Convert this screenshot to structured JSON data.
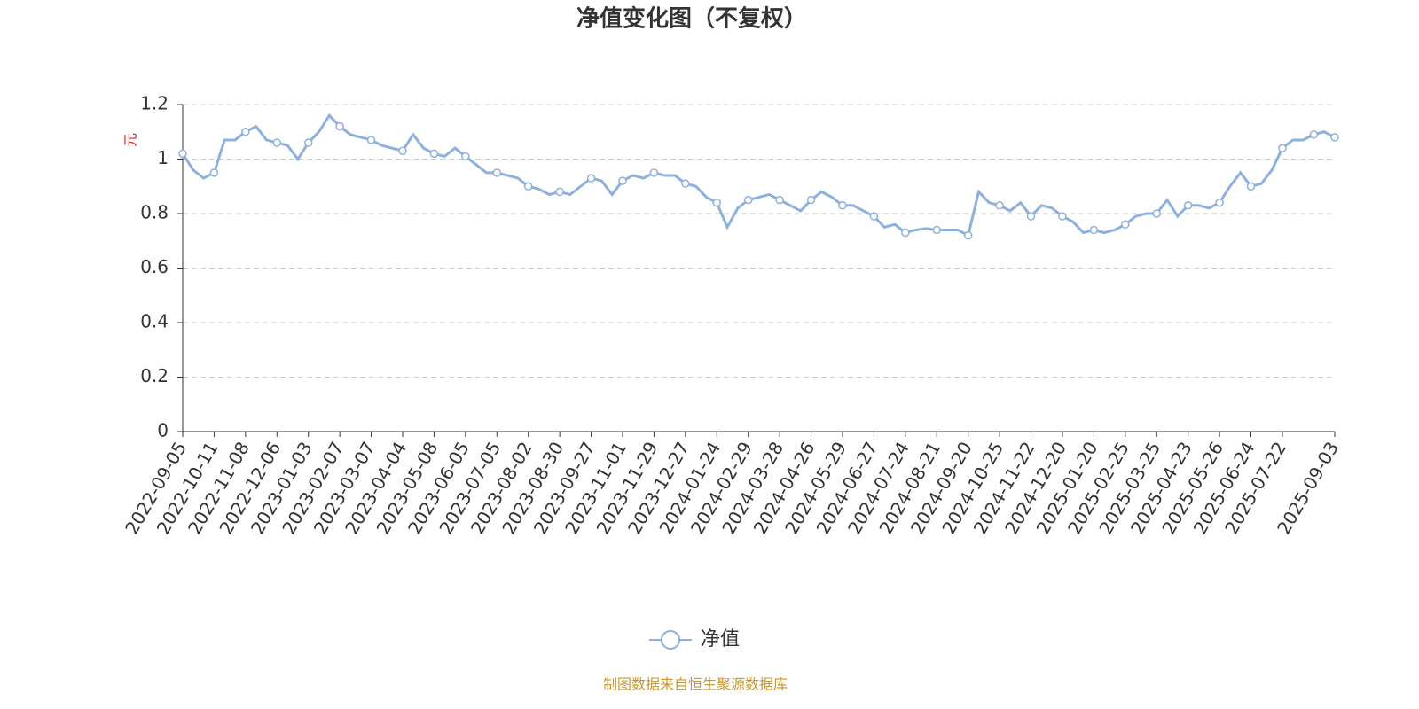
{
  "chart_data": {
    "type": "line",
    "title": "净值变化图（不复权）",
    "y_label": "元",
    "source": "制图数据来自恒生聚源数据库",
    "categories": [
      "2022-09-05",
      null,
      null,
      "2022-10-11",
      null,
      null,
      "2022-11-08",
      null,
      null,
      "2022-12-06",
      null,
      null,
      "2023-01-03",
      null,
      null,
      "2023-02-07",
      null,
      null,
      "2023-03-07",
      null,
      null,
      "2023-04-04",
      null,
      null,
      "2023-05-08",
      null,
      null,
      "2023-06-05",
      null,
      null,
      "2023-07-05",
      null,
      null,
      "2023-08-02",
      null,
      null,
      "2023-08-30",
      null,
      null,
      "2023-09-27",
      null,
      null,
      "2023-11-01",
      null,
      null,
      "2023-11-29",
      null,
      null,
      "2023-12-27",
      null,
      null,
      "2024-01-24",
      null,
      null,
      "2024-02-29",
      null,
      null,
      "2024-03-28",
      null,
      null,
      "2024-04-26",
      null,
      null,
      "2024-05-29",
      null,
      null,
      "2024-06-27",
      null,
      null,
      "2024-07-24",
      null,
      null,
      "2024-08-21",
      null,
      null,
      "2024-09-20",
      null,
      null,
      "2024-10-25",
      null,
      null,
      "2024-11-22",
      null,
      null,
      "2024-12-20",
      null,
      null,
      "2025-01-20",
      null,
      null,
      "2025-02-25",
      null,
      null,
      "2025-03-25",
      null,
      null,
      "2025-04-23",
      null,
      null,
      "2025-05-26",
      null,
      null,
      "2025-06-24",
      null,
      null,
      "2025-07-22",
      null,
      null,
      null,
      null,
      "2025-09-03"
    ],
    "series": [
      {
        "name": "净值",
        "color": "#8eb0dc",
        "values": [
          1.02,
          0.96,
          0.93,
          0.95,
          1.07,
          1.07,
          1.1,
          1.12,
          1.07,
          1.06,
          1.05,
          1.0,
          1.06,
          1.1,
          1.16,
          1.12,
          1.09,
          1.08,
          1.07,
          1.05,
          1.04,
          1.03,
          1.09,
          1.04,
          1.02,
          1.01,
          1.04,
          1.01,
          0.98,
          0.95,
          0.95,
          0.94,
          0.93,
          0.9,
          0.89,
          0.87,
          0.88,
          0.87,
          0.9,
          0.93,
          0.92,
          0.87,
          0.92,
          0.94,
          0.93,
          0.95,
          0.94,
          0.94,
          0.91,
          0.9,
          0.86,
          0.84,
          0.75,
          0.82,
          0.85,
          0.86,
          0.87,
          0.85,
          0.83,
          0.81,
          0.85,
          0.88,
          0.86,
          0.83,
          0.83,
          0.81,
          0.79,
          0.75,
          0.76,
          0.73,
          0.74,
          0.745,
          0.74,
          0.74,
          0.74,
          0.72,
          0.88,
          0.84,
          0.83,
          0.81,
          0.84,
          0.79,
          0.83,
          0.82,
          0.79,
          0.77,
          0.73,
          0.74,
          0.73,
          0.74,
          0.76,
          0.79,
          0.8,
          0.8,
          0.85,
          0.79,
          0.83,
          0.83,
          0.82,
          0.84,
          0.9,
          0.95,
          0.9,
          0.91,
          0.96,
          1.04,
          1.07,
          1.07,
          1.09,
          1.1,
          1.08
        ]
      }
    ],
    "ylim": [
      0,
      1.2
    ],
    "yticks": [
      0,
      0.2,
      0.4,
      0.6,
      0.8,
      1,
      1.2
    ],
    "grid": true
  }
}
